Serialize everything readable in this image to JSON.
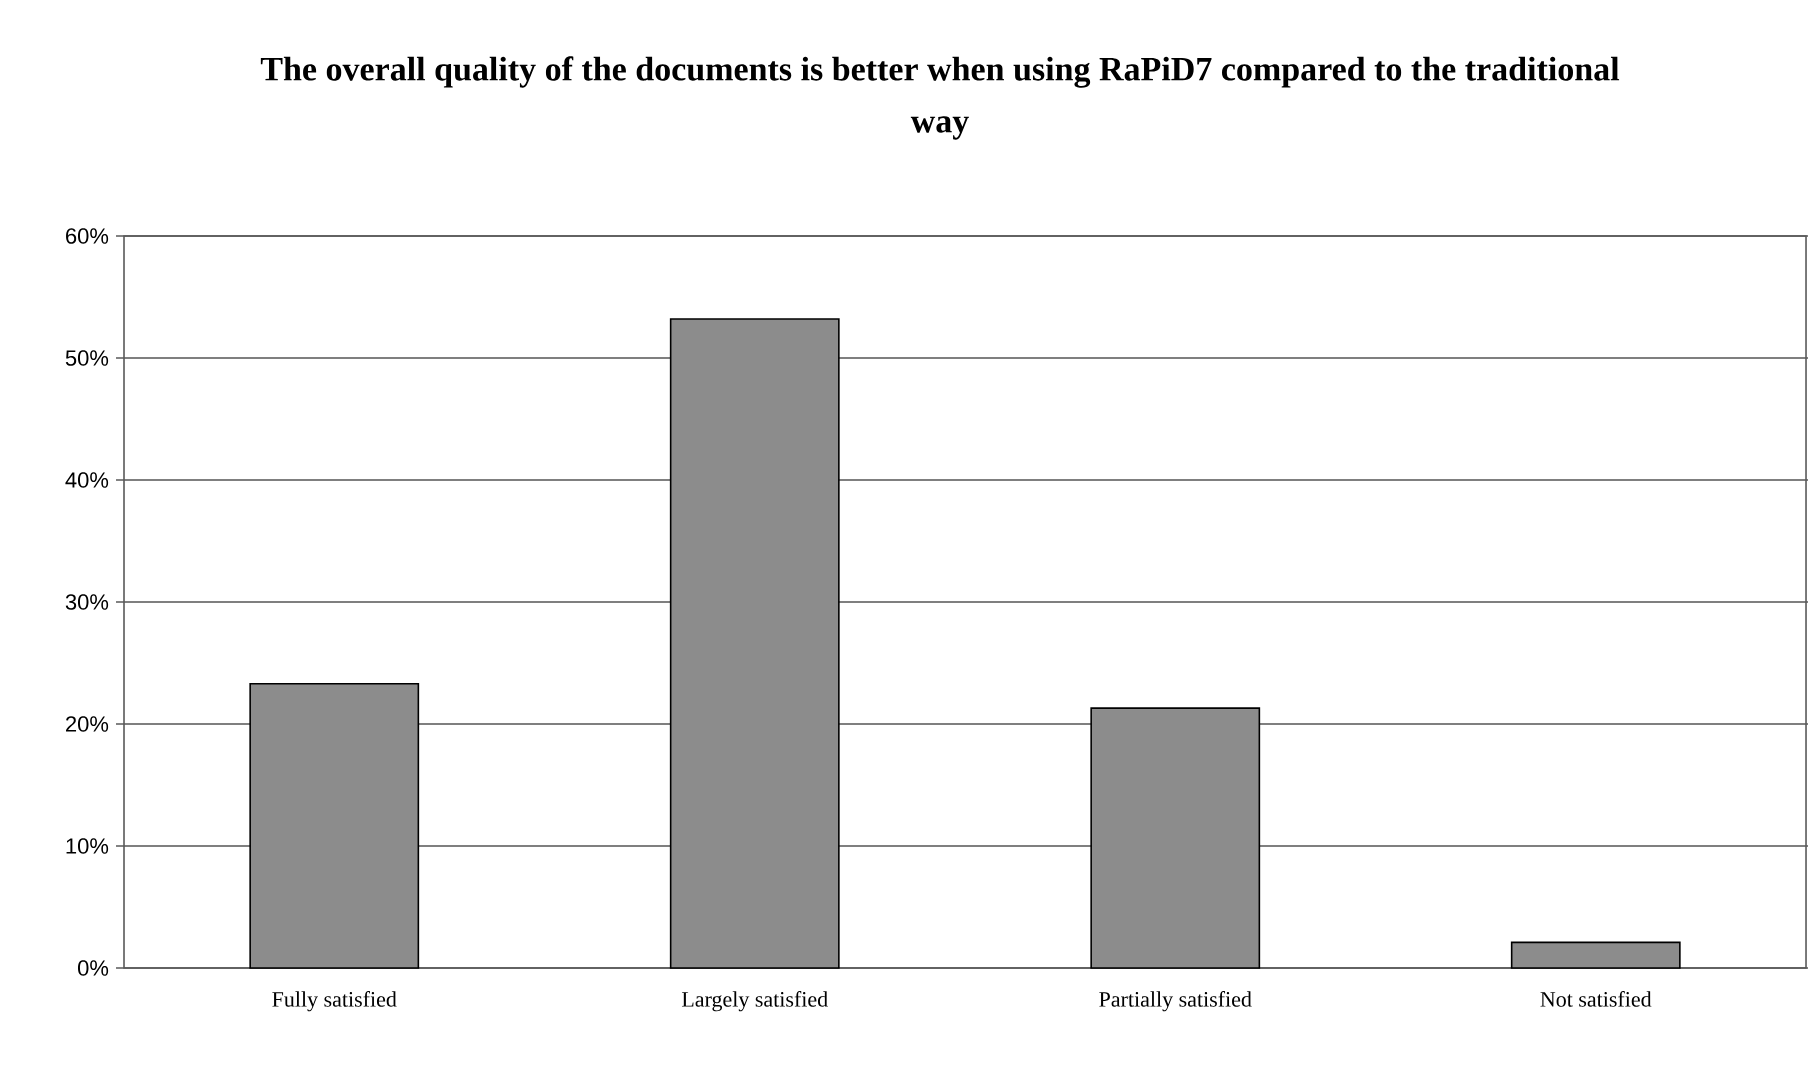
{
  "chart_data": {
    "type": "bar",
    "title": "The overall quality of the documents is better when using RaPiD7 compared to the traditional way",
    "categories": [
      "Fully satisfied",
      "Largely satisfied",
      "Partially satisfied",
      "Not satisfied"
    ],
    "values": [
      23.3,
      53.2,
      21.3,
      2.1
    ],
    "color": "#8c8c8c",
    "ylim": [
      0,
      60
    ],
    "yticks": [
      {
        "value": 0,
        "label": "0%"
      },
      {
        "value": 10,
        "label": "10%"
      },
      {
        "value": 20,
        "label": "20%"
      },
      {
        "value": 30,
        "label": "30%"
      },
      {
        "value": 40,
        "label": "40%"
      },
      {
        "value": 50,
        "label": "50%"
      },
      {
        "value": 60,
        "label": "60%"
      }
    ],
    "grid": "y"
  }
}
